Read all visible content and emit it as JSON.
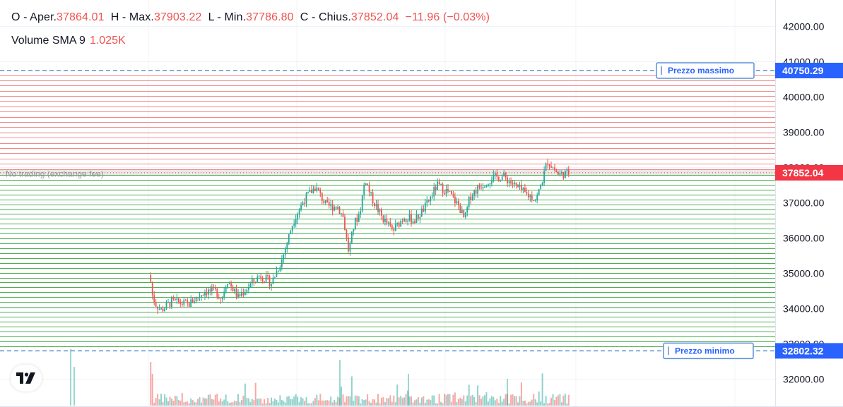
{
  "legend": {
    "open_label": "O - Aper.",
    "open_value": "37864.01",
    "high_label": "H - Max.",
    "high_value": "37903.22",
    "low_label": "L - Min.",
    "low_value": "37786.80",
    "close_label": "C - Chius.",
    "close_value": "37852.04",
    "change_value": "−11.96 (−0.03%)",
    "volume_label": "Volume SMA 9",
    "volume_value": "1.025K"
  },
  "annotations": {
    "max_price_label": "Prezzo massimo",
    "max_price_value": "40750.29",
    "min_price_label": "Prezzo minimo",
    "min_price_value": "32802.32",
    "current_price_value": "37852.04",
    "no_trading_label": "No trading (exchange fee)"
  },
  "colors": {
    "up": "#26a69a",
    "down": "#ef5350",
    "sell_levels": "#f28b8b",
    "buy_levels": "#4caf50",
    "guide": "#5b8fd6",
    "price_tag_blue": "#2962ff",
    "price_tag_red": "#f23645"
  },
  "icons": {
    "logo": "tradingview-logo-icon"
  },
  "chart_data": {
    "type": "candlestick",
    "y_axis_ticks": [
      "32000.00",
      "33000.00",
      "34000.00",
      "35000.00",
      "36000.00",
      "37000.00",
      "38000.00",
      "39000.00",
      "40000.00",
      "41000.00",
      "42000.00"
    ],
    "ylim": [
      31300,
      42500
    ],
    "grid": true,
    "max_price": 40750.29,
    "min_price": 32802.32,
    "last_price": 37852.04,
    "ohlc_last": {
      "open": 37864.01,
      "high": 37903.22,
      "low": 37786.8,
      "close": 37852.04
    },
    "sell_grid_levels": {
      "from": 37960,
      "to": 40620,
      "count": 19
    },
    "buy_grid_levels": {
      "from": 32940,
      "to": 37790,
      "count": 36
    },
    "no_trading_band": [
      37790,
      37960
    ],
    "price_path": [
      [
        0,
        0,
        34950
      ],
      [
        0.25,
        0,
        34350
      ],
      [
        0.5,
        0,
        34150
      ],
      [
        1,
        0.18,
        33950
      ],
      [
        2,
        0.27,
        34200
      ],
      [
        3.5,
        0.32,
        34120
      ],
      [
        5,
        0.36,
        34500
      ],
      [
        6,
        0.39,
        34480
      ],
      [
        6.5,
        0.42,
        34280
      ],
      [
        7,
        0.47,
        34820
      ],
      [
        8,
        0.5,
        34320
      ],
      [
        9,
        0.55,
        34650
      ],
      [
        10,
        0.61,
        34950
      ],
      [
        11,
        0.67,
        34720
      ],
      [
        12,
        0.69,
        35420
      ],
      [
        13,
        0.71,
        36500
      ],
      [
        14,
        0.75,
        37100
      ],
      [
        15,
        0.78,
        37450
      ],
      [
        16,
        0.82,
        36900
      ],
      [
        17,
        0.9,
        36900
      ],
      [
        17.5,
        0.93,
        36600
      ],
      [
        18,
        0,
        35600
      ],
      [
        18.5,
        0.08,
        36400
      ],
      [
        19,
        0.1,
        36700
      ],
      [
        19.5,
        0.11,
        37700
      ],
      [
        20,
        0.15,
        37200
      ],
      [
        21,
        0.25,
        36600
      ],
      [
        22,
        0.33,
        36200
      ],
      [
        23,
        0.39,
        36600
      ],
      [
        24,
        0.45,
        36500
      ],
      [
        25,
        0.5,
        36900
      ],
      [
        26,
        0.54,
        37500
      ],
      [
        27,
        0.61,
        37300
      ],
      [
        28,
        0.64,
        36900
      ],
      [
        28.5,
        0.65,
        36500
      ],
      [
        29,
        0.67,
        37200
      ],
      [
        30,
        0.7,
        37500
      ],
      [
        31,
        0.75,
        37700
      ],
      [
        32,
        0.77,
        37750
      ],
      [
        33,
        0.81,
        37500
      ],
      [
        34,
        0.84,
        37250
      ],
      [
        35,
        0.86,
        37100
      ],
      [
        35.5,
        0.87,
        37600
      ],
      [
        36,
        0.88,
        38200
      ],
      [
        37,
        0.96,
        37800
      ],
      [
        38,
        1,
        37852
      ]
    ],
    "candle_count": 240
  }
}
